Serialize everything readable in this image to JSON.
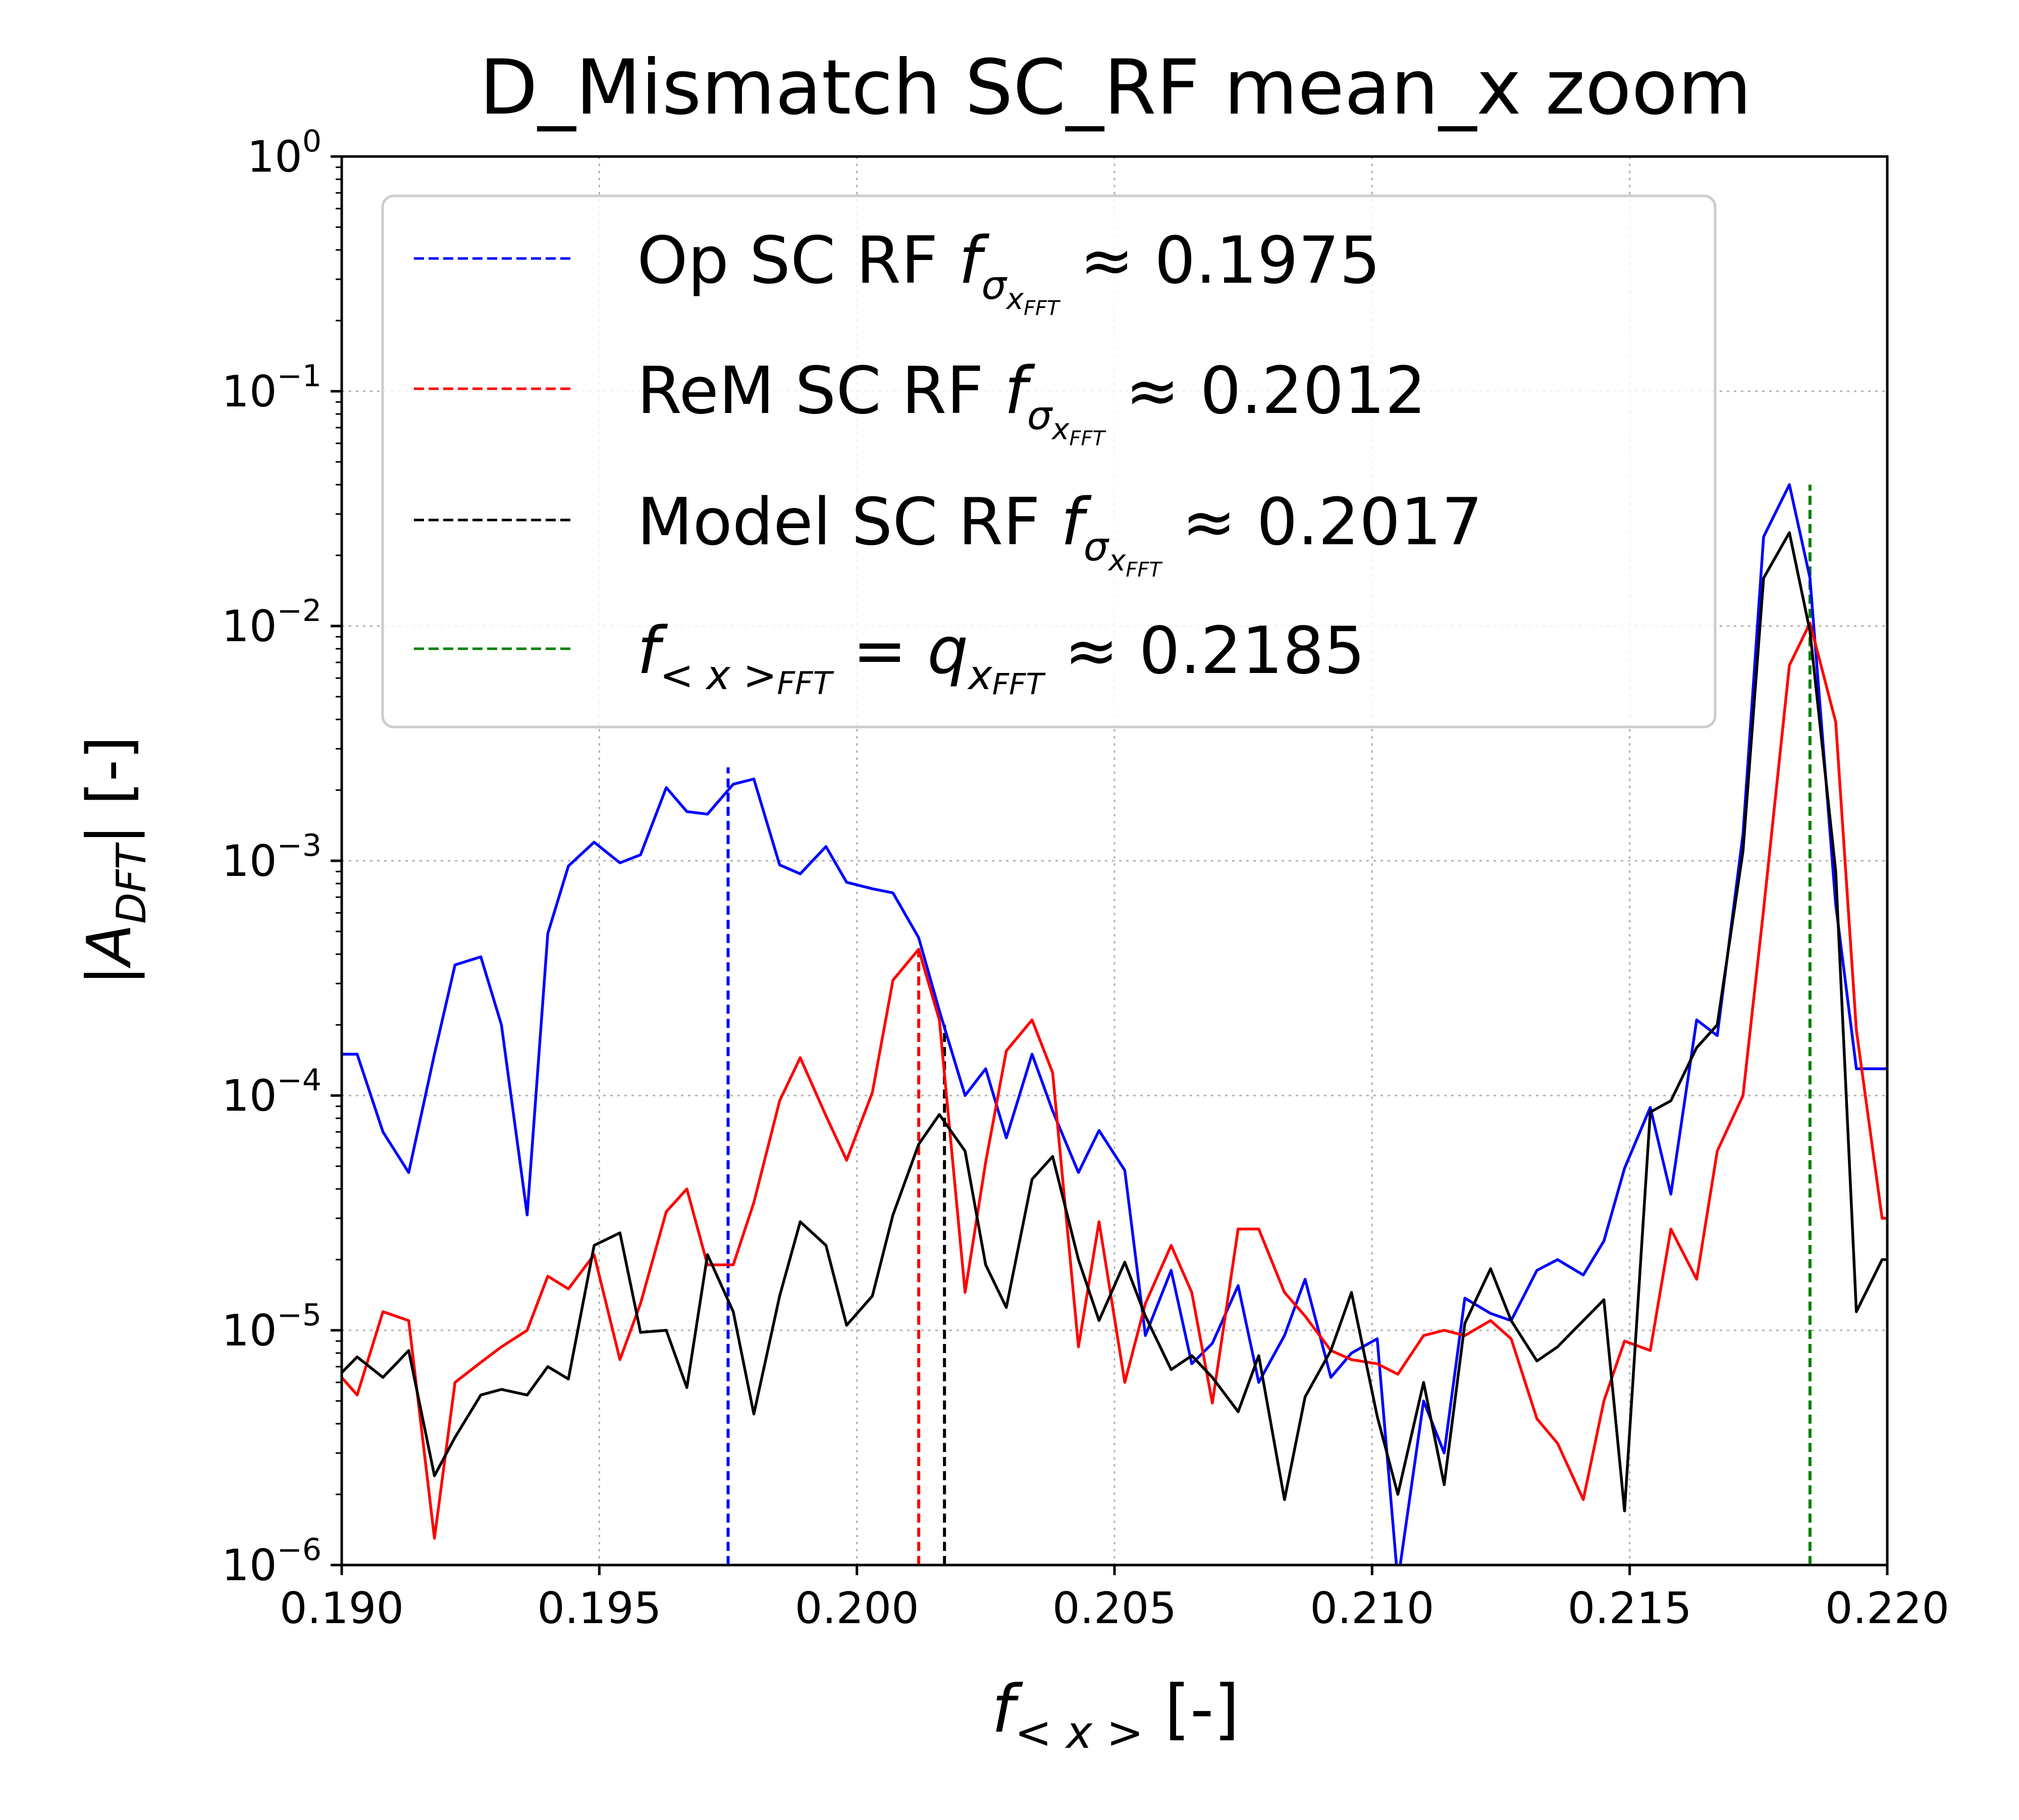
{
  "chart_data": {
    "type": "line",
    "title": "D_Mismatch SC_RF mean_x zoom",
    "xlabel": "f<x> [-]",
    "ylabel": "|ADFT| [-]",
    "xscale": "linear",
    "yscale": "log",
    "xlim": [
      0.19,
      0.22
    ],
    "ylim": [
      1e-06,
      1
    ],
    "grid": true,
    "legend_position": "top-left",
    "x_tick_labels": [
      "0.190",
      "0.195",
      "0.200",
      "0.205",
      "0.210",
      "0.215",
      "0.220"
    ],
    "y_tick_labels": [
      {
        "base": "10",
        "exp": "0"
      },
      {
        "base": "10",
        "exp": "−1"
      },
      {
        "base": "10",
        "exp": "−2"
      },
      {
        "base": "10",
        "exp": "−3"
      },
      {
        "base": "10",
        "exp": "−4"
      },
      {
        "base": "10",
        "exp": "−5"
      },
      {
        "base": "10",
        "exp": "−6"
      }
    ],
    "legend": [
      {
        "label": "Op SC RF fσxFFT ≈ 0.1975",
        "color": "#0000ff"
      },
      {
        "label": "ReM SC RF fσxFFT ≈ 0.2012",
        "color": "#ff0000"
      },
      {
        "label": "Model SC RF fσxFFT ≈ 0.2017",
        "color": "#000000"
      },
      {
        "label": "f<x>FFT = qxFFT ≈ 0.2185",
        "color": "#008000"
      }
    ],
    "vlines": [
      {
        "x": 0.1975,
        "top": 0.0025,
        "color": "#0000ff"
      },
      {
        "x": 0.2012,
        "top": 0.00042,
        "color": "#ff0000"
      },
      {
        "x": 0.2017,
        "top": 0.0002,
        "color": "#000000"
      },
      {
        "x": 0.2185,
        "top": 0.04,
        "color": "#008000"
      }
    ],
    "x": [
      0.19,
      0.1903,
      0.1908,
      0.1913,
      0.1918,
      0.1922,
      0.1927,
      0.1931,
      0.1936,
      0.194,
      0.1944,
      0.1949,
      0.1954,
      0.1958,
      0.1963,
      0.1967,
      0.1971,
      0.1976,
      0.198,
      0.1985,
      0.1989,
      0.1994,
      0.1998,
      0.2003,
      0.2007,
      0.2012,
      0.2016,
      0.2021,
      0.2025,
      0.2029,
      0.2034,
      0.2038,
      0.2043,
      0.2047,
      0.2052,
      0.2056,
      0.2061,
      0.2065,
      0.2069,
      0.2074,
      0.2078,
      0.2083,
      0.2087,
      0.2092,
      0.2096,
      0.2101,
      0.2105,
      0.211,
      0.2114,
      0.2118,
      0.2123,
      0.2127,
      0.2132,
      0.2136,
      0.2141,
      0.2145,
      0.2149,
      0.2154,
      0.2158,
      0.2163,
      0.2167,
      0.2172,
      0.2176,
      0.2181,
      0.2185,
      0.219,
      0.2194,
      0.2199,
      0.22
    ],
    "series": [
      {
        "name": "Op SC RF",
        "color": "#0000ff",
        "values": [
          0.00015,
          0.00015,
          7e-05,
          4.7e-05,
          0.00015,
          0.00036,
          0.00039,
          0.0002,
          3.1e-05,
          0.00049,
          0.00095,
          0.0012,
          0.00098,
          0.00106,
          0.00205,
          0.00162,
          0.00158,
          0.00212,
          0.00223,
          0.00096,
          0.00088,
          0.00115,
          0.00081,
          0.00076,
          0.00073,
          0.00047,
          0.00023,
          0.0001,
          0.00013,
          6.6e-05,
          0.00015,
          8.6e-05,
          4.7e-05,
          7.1e-05,
          4.8e-05,
          9.5e-06,
          1.8e-05,
          7.2e-06,
          8.8e-06,
          1.55e-05,
          6e-06,
          9.5e-06,
          1.65e-05,
          6.3e-06,
          8e-06,
          9.2e-06,
          8.5e-07,
          5e-06,
          3e-06,
          1.37e-05,
          1.18e-05,
          1.1e-05,
          1.8e-05,
          2e-05,
          1.72e-05,
          2.4e-05,
          4.9e-05,
          8.9e-05,
          3.8e-05,
          0.00021,
          0.00018,
          0.0013,
          0.024,
          0.04,
          0.016,
          0.00065,
          0.00013,
          0.00013,
          0.00013
        ]
      },
      {
        "name": "ReM SC RF",
        "color": "#ff0000",
        "values": [
          6.3e-06,
          5.3e-06,
          1.2e-05,
          1.1e-05,
          1.3e-06,
          6e-06,
          7.3e-06,
          8.5e-06,
          1e-05,
          1.7e-05,
          1.5e-05,
          2.1e-05,
          7.5e-06,
          1.3e-05,
          3.2e-05,
          4e-05,
          1.9e-05,
          1.9e-05,
          3.5e-05,
          9.5e-05,
          0.000145,
          8.2e-05,
          5.3e-05,
          0.000103,
          0.00031,
          0.00042,
          0.00021,
          1.45e-05,
          5.2e-05,
          0.000155,
          0.00021,
          0.000125,
          8.5e-06,
          2.9e-05,
          6e-06,
          1.3e-05,
          2.3e-05,
          1.45e-05,
          4.9e-06,
          2.7e-05,
          2.7e-05,
          1.45e-05,
          1.15e-05,
          8.2e-06,
          7.5e-06,
          7.2e-06,
          6.5e-06,
          9.5e-06,
          1e-05,
          9.5e-06,
          1.1e-05,
          9.2e-06,
          4.2e-06,
          3.3e-06,
          1.9e-06,
          5e-06,
          9e-06,
          8.2e-06,
          2.7e-05,
          1.65e-05,
          5.8e-05,
          0.0001,
          0.00062,
          0.0068,
          0.0103,
          0.0039,
          0.00019,
          3e-05,
          3e-05
        ]
      },
      {
        "name": "Model SC RF",
        "color": "#000000",
        "values": [
          6.6e-06,
          7.7e-06,
          6.3e-06,
          8.2e-06,
          2.4e-06,
          3.5e-06,
          5.3e-06,
          5.6e-06,
          5.3e-06,
          7e-06,
          6.2e-06,
          2.3e-05,
          2.6e-05,
          9.8e-06,
          1e-05,
          5.7e-06,
          2.1e-05,
          1.2e-05,
          4.4e-06,
          1.4e-05,
          2.9e-05,
          2.3e-05,
          1.05e-05,
          1.4e-05,
          3.1e-05,
          6.2e-05,
          8.3e-05,
          5.8e-05,
          1.9e-05,
          1.25e-05,
          4.4e-05,
          5.5e-05,
          2e-05,
          1.1e-05,
          1.95e-05,
          1.15e-05,
          6.8e-06,
          7.8e-06,
          6.3e-06,
          4.5e-06,
          7.8e-06,
          1.9e-06,
          5.2e-06,
          8.2e-06,
          1.45e-05,
          4.3e-06,
          2e-06,
          6e-06,
          2.2e-06,
          1.07e-05,
          1.83e-05,
          1.1e-05,
          7.4e-06,
          8.5e-06,
          1.1e-05,
          1.35e-05,
          1.7e-06,
          8.5e-05,
          9.5e-05,
          0.00016,
          0.0002,
          0.0011,
          0.016,
          0.025,
          0.0095,
          0.0009,
          1.2e-05,
          2e-05,
          2e-05
        ]
      }
    ]
  }
}
